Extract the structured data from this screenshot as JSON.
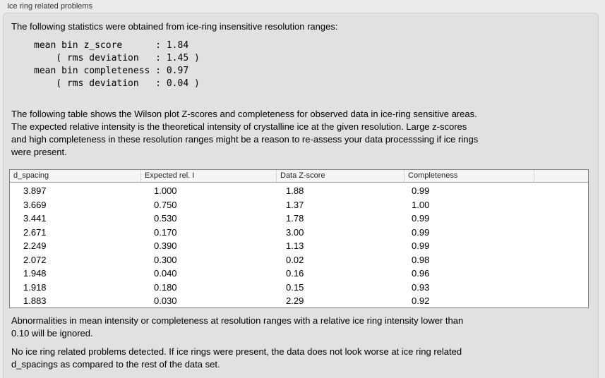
{
  "panel": {
    "title": "Ice ring related problems"
  },
  "intro_text": "The following statistics were obtained from ice-ring insensitive resolution ranges:",
  "stats_block": "mean bin z_score      : 1.84\n    ( rms deviation   : 1.45 )\nmean bin completeness : 0.97\n    ( rms deviation   : 0.04 )",
  "table_intro": "The following table shows the Wilson plot Z-scores and completeness for observed data in ice-ring sensitive areas.\nThe expected relative intensity is the theoretical intensity of crystalline ice at the given resolution. Large z-scores\nand high completeness in these resolution ranges might be a reason to re-assess your data processsing if ice rings\nwere present.",
  "table": {
    "columns": [
      "d_spacing",
      "Expected rel. I",
      "Data Z-score",
      "Completeness"
    ],
    "column_keys": [
      "d-spacing",
      "expected-rel-i",
      "data-z-score",
      "completeness"
    ],
    "rows": [
      [
        "3.897",
        "1.000",
        "1.88",
        "0.99"
      ],
      [
        "3.669",
        "0.750",
        "1.37",
        "1.00"
      ],
      [
        "3.441",
        "0.530",
        "1.78",
        "0.99"
      ],
      [
        "2.671",
        "0.170",
        "3.00",
        "0.99"
      ],
      [
        "2.249",
        "0.390",
        "1.13",
        "0.99"
      ],
      [
        "2.072",
        "0.300",
        "0.02",
        "0.98"
      ],
      [
        "1.948",
        "0.040",
        "0.16",
        "0.96"
      ],
      [
        "1.918",
        "0.180",
        "0.15",
        "0.93"
      ],
      [
        "1.883",
        "0.030",
        "2.29",
        "0.92"
      ]
    ]
  },
  "ignore_note": "Abnormalities in mean intensity or completeness at resolution ranges with a relative ice ring intensity lower than\n0.10 will be ignored.",
  "conclusion": "No ice ring related problems detected. If ice rings were present, the data does not look worse at ice ring related\nd_spacings as compared to the rest of the data set.",
  "colors": {
    "page_background": "#ebebeb",
    "groupbox_background": "#e1e1e1",
    "table_border": "#808080",
    "header_background": "#f5f5f5"
  }
}
